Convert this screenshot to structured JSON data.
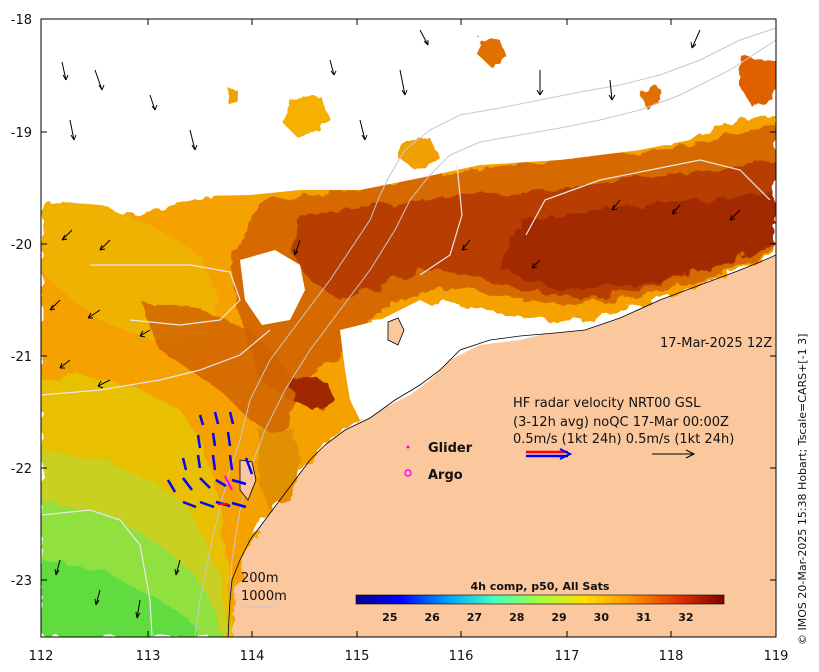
{
  "map": {
    "x_ticks": [
      "112",
      "113",
      "114",
      "115",
      "116",
      "117",
      "118",
      "119"
    ],
    "y_ticks": [
      "-18",
      "-19",
      "-20",
      "-21",
      "-22",
      "-23"
    ],
    "timestamp": "17-Mar-2025 12Z",
    "credit": "© IMOS 20-Mar-2025 15:38 Hobart; Tscale=CARS+[-1 3]"
  },
  "legend": {
    "hf_line1": "HF radar velocity  NRT00 GSL",
    "hf_line2": "(3-12h avg) noQC 17-Mar 00:00Z",
    "hf_line3": "0.5m/s (1kt 24h)   0.5m/s (1kt 24h)",
    "glider": "Glider",
    "argo": "Argo",
    "depth_200": "200m",
    "depth_1000": "1000m"
  },
  "colorbar": {
    "title": "4h comp, p50, All Sats",
    "ticks": [
      "25",
      "26",
      "27",
      "28",
      "29",
      "30",
      "31",
      "32"
    ],
    "range": [
      24.2,
      32.9
    ]
  },
  "colors": {
    "land": "#fbc79d",
    "hf_radar": "#0000ff",
    "legend_red": "#ff0000",
    "glider": "#ff00ff",
    "argo": "#ff00ff"
  }
}
